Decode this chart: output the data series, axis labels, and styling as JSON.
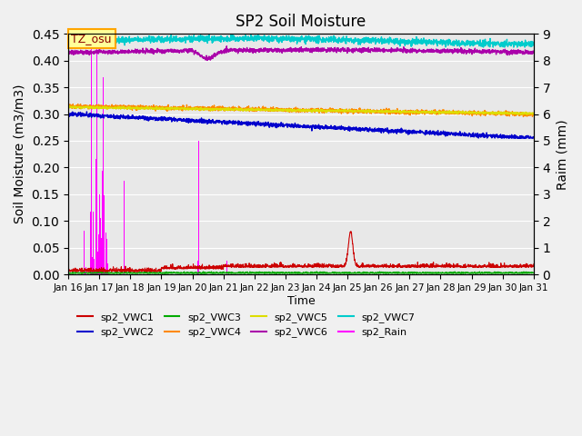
{
  "title": "SP2 Soil Moisture",
  "xlabel": "Time",
  "ylabel_left": "Soil Moisture (m3/m3)",
  "ylabel_right": "Raim (mm)",
  "ylim_left": [
    0,
    0.45
  ],
  "ylim_right": [
    0,
    9.0
  ],
  "yticks_left": [
    0.0,
    0.05,
    0.1,
    0.15,
    0.2,
    0.25,
    0.3,
    0.35,
    0.4,
    0.45
  ],
  "yticks_right": [
    0.0,
    1.0,
    2.0,
    3.0,
    4.0,
    5.0,
    6.0,
    7.0,
    8.0,
    9.0
  ],
  "xtick_labels": [
    "Jan 16",
    "Jan 17",
    "Jan 18",
    "Jan 19",
    "Jan 20",
    "Jan 21",
    "Jan 22",
    "Jan 23",
    "Jan 24",
    "Jan 25",
    "Jan 26",
    "Jan 27",
    "Jan 28",
    "Jan 29",
    "Jan 30",
    "Jan 31"
  ],
  "tz_label": "TZ_osu",
  "colors": {
    "VWC1": "#cc0000",
    "VWC2": "#0000cc",
    "VWC3": "#00aa00",
    "VWC4": "#ff8800",
    "VWC5": "#dddd00",
    "VWC6": "#aa00aa",
    "VWC7": "#00cccc",
    "Rain": "#ff00ff"
  },
  "legend": [
    {
      "label": "sp2_VWC1",
      "color": "#cc0000"
    },
    {
      "label": "sp2_VWC2",
      "color": "#0000cc"
    },
    {
      "label": "sp2_VWC3",
      "color": "#00aa00"
    },
    {
      "label": "sp2_VWC4",
      "color": "#ff8800"
    },
    {
      "label": "sp2_VWC5",
      "color": "#dddd00"
    },
    {
      "label": "sp2_VWC6",
      "color": "#aa00aa"
    },
    {
      "label": "sp2_VWC7",
      "color": "#00cccc"
    },
    {
      "label": "sp2_Rain",
      "color": "#ff00ff"
    }
  ],
  "background_color": "#e8e8e8"
}
